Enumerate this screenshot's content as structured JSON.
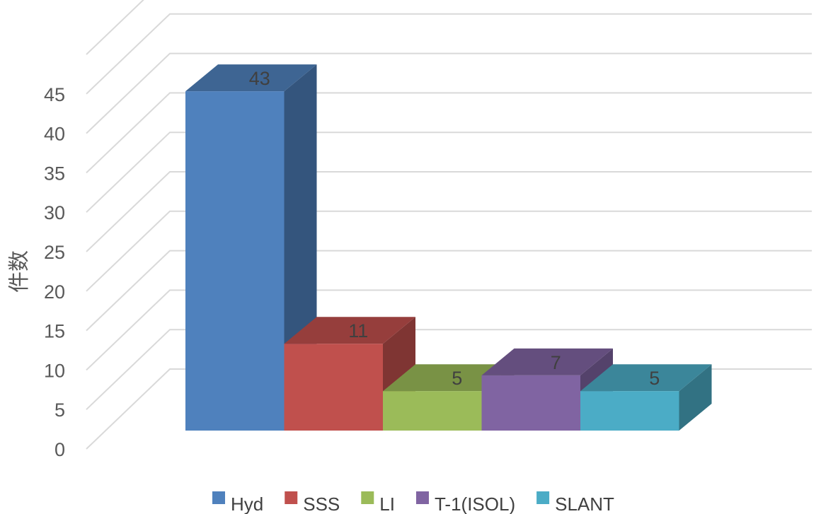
{
  "chart_data": {
    "type": "bar",
    "style": "3d-clustered-column",
    "title": "",
    "xlabel": "",
    "ylabel": "件数",
    "ylim": [
      0,
      50
    ],
    "yticks": [
      0,
      5,
      10,
      15,
      20,
      25,
      30,
      35,
      40,
      45
    ],
    "grid": true,
    "legend_position": "bottom",
    "series": [
      {
        "name": "Hyd",
        "value": 43,
        "label": "43",
        "color": "#4f81bd"
      },
      {
        "name": "SSS",
        "value": 11,
        "label": "11",
        "color": "#c0504d"
      },
      {
        "name": "LI",
        "value": 5,
        "label": "5",
        "color": "#9bbb59"
      },
      {
        "name": "T-1(ISOL)",
        "value": 7,
        "label": "7",
        "color": "#8064a2"
      },
      {
        "name": "SLANT",
        "value": 5,
        "label": "5",
        "color": "#4bacc6"
      }
    ]
  }
}
